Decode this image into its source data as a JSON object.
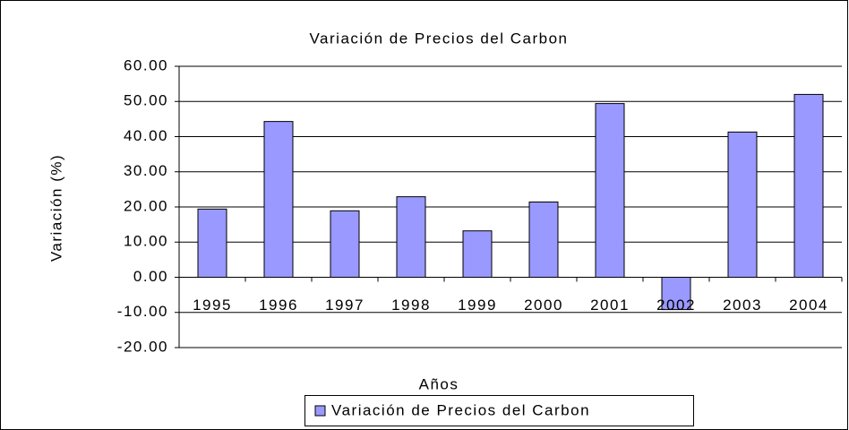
{
  "chart_data": {
    "type": "bar",
    "title": "Variación de Precios del Carbon",
    "x_label": "Años",
    "y_label": "Variación (%)",
    "categories": [
      "1995",
      "1996",
      "1997",
      "1998",
      "1999",
      "2000",
      "2001",
      "2002",
      "2003",
      "2004"
    ],
    "series": [
      {
        "name": "Variación de Precios del Carbon",
        "color": "#9999ff",
        "values": [
          19.4,
          44.3,
          18.9,
          22.9,
          13.2,
          21.4,
          49.4,
          -9.2,
          41.3,
          52.0
        ]
      }
    ],
    "ylim": [
      -20,
      60
    ],
    "yticks": [
      {
        "value": -20,
        "label": "-20.00"
      },
      {
        "value": -10,
        "label": "-10.00"
      },
      {
        "value": 0,
        "label": "0.00"
      },
      {
        "value": 10,
        "label": "10.00"
      },
      {
        "value": 20,
        "label": "20.00"
      },
      {
        "value": 30,
        "label": "30.00"
      },
      {
        "value": 40,
        "label": "40.00"
      },
      {
        "value": 50,
        "label": "50.00"
      },
      {
        "value": 60,
        "label": "60.00"
      }
    ],
    "grid": true
  }
}
